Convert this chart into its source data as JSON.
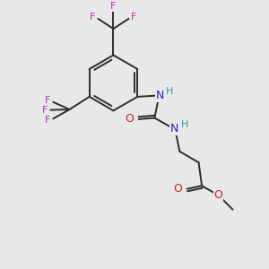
{
  "background_color": "#e8e8e8",
  "bond_color": "#2d2d2d",
  "N_color": "#2222cc",
  "O_color": "#cc2222",
  "F_color": "#cc22cc",
  "H_color": "#339999",
  "figsize": [
    3.0,
    3.0
  ],
  "dpi": 100,
  "xlim": [
    0,
    10
  ],
  "ylim": [
    0,
    10
  ]
}
